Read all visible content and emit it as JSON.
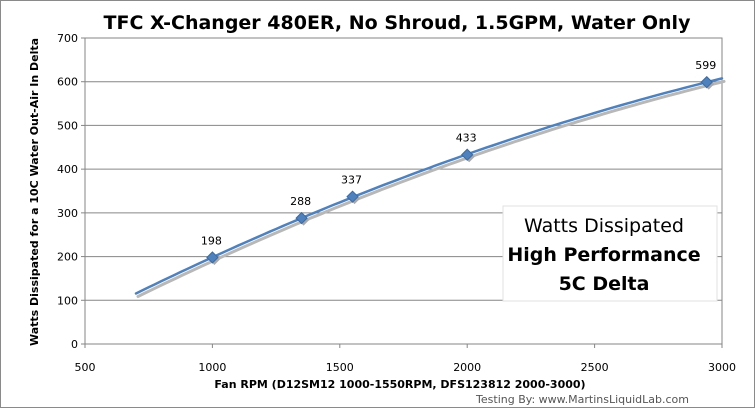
{
  "chart_data": {
    "type": "line",
    "title": "TFC X-Changer 480ER, No Shroud, 1.5GPM, Water Only",
    "xlabel": "Fan RPM (D12SM12 1000-1550RPM, DFS123812 2000-3000)",
    "ylabel": "Watts Dissipated  for a  10C Water Out-Air In Delta",
    "xlim": [
      500,
      3000
    ],
    "ylim": [
      0,
      700
    ],
    "x_ticks": [
      "500",
      "1000",
      "1500",
      "2000",
      "2500",
      "3000"
    ],
    "y_ticks": [
      "0",
      "100",
      "200",
      "300",
      "400",
      "500",
      "600",
      "700"
    ],
    "grid": "horizontal",
    "series": [
      {
        "name": "",
        "color": "#4f81bd",
        "marker": "diamond",
        "points": [
          {
            "x": 1000,
            "y": 198,
            "label": "198"
          },
          {
            "x": 1350,
            "y": 288,
            "label": "288"
          },
          {
            "x": 1550,
            "y": 337,
            "label": "337"
          },
          {
            "x": 2000,
            "y": 433,
            "label": "433"
          },
          {
            "x": 2940,
            "y": 599,
            "label": "599"
          }
        ]
      }
    ],
    "trendline": {
      "color": "#4f81bd",
      "x_range": [
        700,
        3000
      ]
    },
    "annotation": {
      "line1": "Watts Dissipated",
      "line2": "High Performance",
      "line3": "5C Delta"
    },
    "footer": "Testing By: www.MartinsLiquidLab.com"
  }
}
